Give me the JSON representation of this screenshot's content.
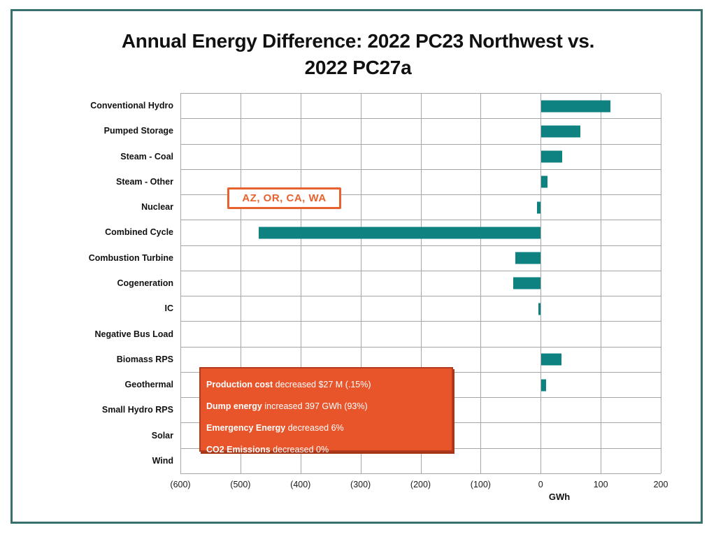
{
  "slide": {
    "title_line1": "Annual Energy Difference: 2022 PC23 Northwest vs.",
    "title_line2": "2022 PC27a"
  },
  "chart_data": {
    "type": "bar",
    "orientation": "horizontal",
    "title": "Annual Energy Difference: 2022 PC23 Northwest vs. 2022 PC27a",
    "categories": [
      "Conventional Hydro",
      "Pumped Storage",
      "Steam - Coal",
      "Steam - Other",
      "Nuclear",
      "Combined Cycle",
      "Combustion Turbine",
      "Cogeneration",
      "IC",
      "Negative Bus Load",
      "Biomass RPS",
      "Geothermal",
      "Small Hydro RPS",
      "Solar",
      "Wind"
    ],
    "values": [
      115,
      65,
      35,
      10,
      -6,
      -470,
      -42,
      -46,
      -4,
      0,
      34,
      8,
      0,
      0,
      0
    ],
    "xlabel": "GWh",
    "xlim": [
      -600,
      200
    ],
    "xtick_values": [
      -600,
      -500,
      -400,
      -300,
      -200,
      -100,
      0,
      100,
      200
    ],
    "xtick_labels": [
      "(600)",
      "(500)",
      "(400)",
      "(300)",
      "(200)",
      "(100)",
      "0",
      "100",
      "200"
    ],
    "bar_color": "#0e8181",
    "grid": true,
    "legend": "none"
  },
  "annotations": {
    "states_callout": {
      "text": "AZ, OR, CA, WA"
    },
    "summary_box": {
      "lines": [
        {
          "bold": "Production cost",
          "rest": " decreased $27 M (.15%)"
        },
        {
          "bold": "Dump energy",
          "rest": " increased  397 GWh (93%)"
        },
        {
          "bold": "Emergency Energy",
          "rest": " decreased  6%"
        },
        {
          "bold": "CO2 Emissions",
          "rest": " decreased  0%"
        }
      ]
    }
  },
  "colors": {
    "bar": "#0e8181",
    "frame": "#38706d",
    "grid": "#a6a6a6",
    "callout_orange": "#e8622d",
    "summary_bg": "#e8552b",
    "summary_border": "#b43a1d"
  }
}
